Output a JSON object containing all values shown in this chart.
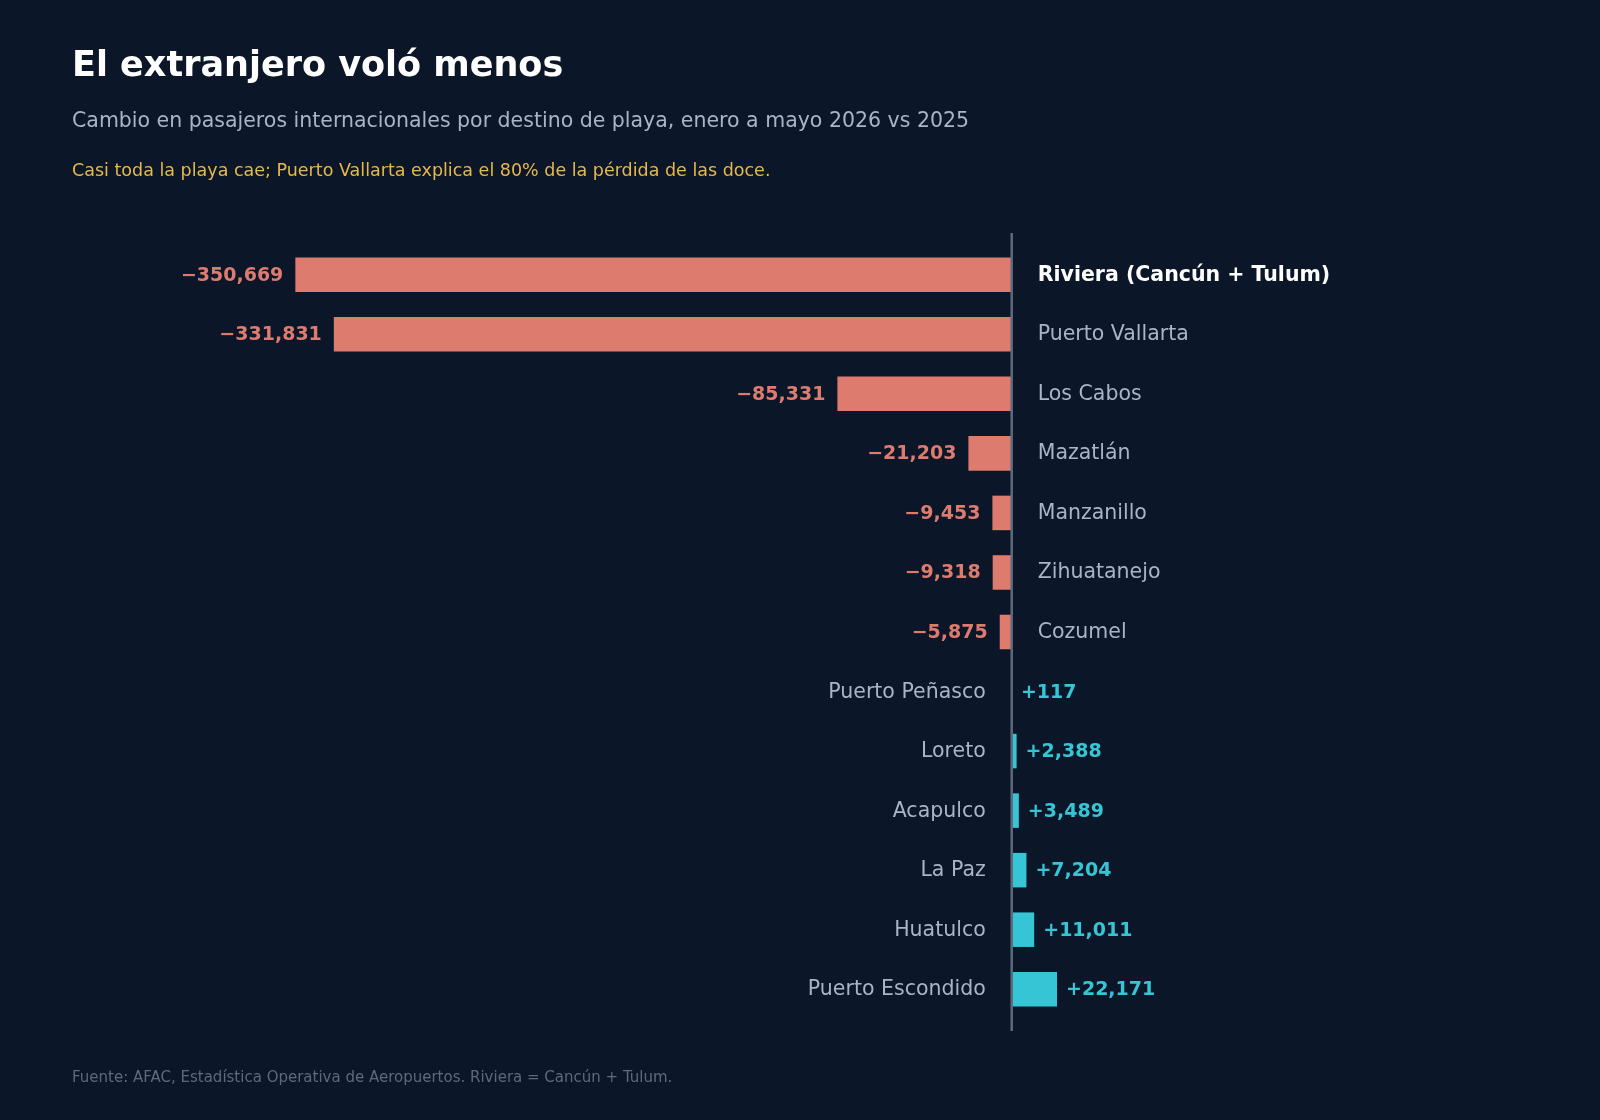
{
  "chart_data": {
    "type": "bar",
    "orientation": "horizontal",
    "title": "El extranjero voló menos",
    "subtitle": "Cambio en pasajeros internacionales por destino de playa, enero a mayo 2026 vs 2025",
    "annotations": [
      "Casi toda la playa cae; Puerto Vallarta explica el 80% de la pérdida de las doce.",
      "Fuente: AFAC, Estadística Operativa de Aeropuertos. Riviera = Cancún + Tulum."
    ],
    "categories": [
      "Riviera (Cancún + Tulum)",
      "Puerto Vallarta",
      "Los Cabos",
      "Mazatlán",
      "Manzanillo",
      "Zihuatanejo",
      "Cozumel",
      "Puerto Peñasco",
      "Loreto",
      "Acapulco",
      "La Paz",
      "Huatulco",
      "Puerto Escondido"
    ],
    "values": [
      -350669,
      -331831,
      -85331,
      -21203,
      -9453,
      -9318,
      -5875,
      117,
      2388,
      3489,
      7204,
      11011,
      22171
    ],
    "value_labels": [
      "−350,669",
      "−331,831",
      "−85,331",
      "−21,203",
      "−9,453",
      "−9,318",
      "−5,875",
      "+117",
      "+2,388",
      "+3,489",
      "+7,204",
      "+11,011",
      "+22,171"
    ],
    "colors": [
      "#dd7b6f",
      "#dd7b6f",
      "#dd7b6f",
      "#dd7b6f",
      "#dd7b6f",
      "#dd7b6f",
      "#dd7b6f",
      "#36c5d4",
      "#36c5d4",
      "#36c5d4",
      "#36c5d4",
      "#36c5d4",
      "#36c5d4"
    ],
    "xlim": [
      -460000,
      240000
    ],
    "tick_labels": "y"
  }
}
